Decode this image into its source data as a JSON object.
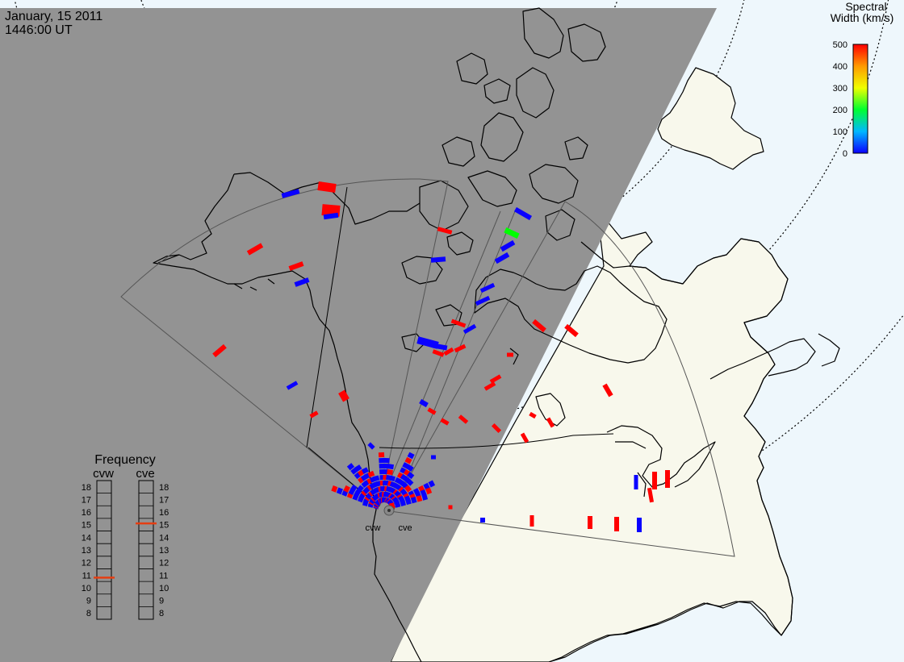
{
  "title": {
    "date": "January, 15 2011",
    "time": "1446:00 UT"
  },
  "colors": {
    "night": "#939393",
    "land_day": "#f8f8ec",
    "ocean": "#eef7fc",
    "coast": "#000000",
    "grid": "#000000",
    "fov_line": "#555555",
    "freq_marker": "#e63e12",
    "echo_low": "#0a00ff",
    "echo_mid": "#00ff00",
    "echo_high": "#ff0000"
  },
  "colorbar": {
    "title_line1": "Spectral",
    "title_line2": "Width (km/s)",
    "min": 0,
    "max": 500,
    "ticks": [
      "0",
      "100",
      "200",
      "300",
      "400",
      "500"
    ],
    "stops": [
      "#0a00ff",
      "#00b8ff",
      "#00ff30",
      "#f0ff00",
      "#ff9a00",
      "#ff0000"
    ]
  },
  "radars": [
    {
      "code": "cvw",
      "label": "cvw",
      "frequency_mhz": 10.8
    },
    {
      "code": "cve",
      "label": "cve",
      "frequency_mhz": 15.1
    }
  ],
  "frequency_panel": {
    "title": "Frequency",
    "min": 8,
    "max": 18,
    "ticks": [
      "18",
      "17",
      "16",
      "15",
      "14",
      "13",
      "12",
      "11",
      "10",
      "9",
      "8"
    ]
  }
}
